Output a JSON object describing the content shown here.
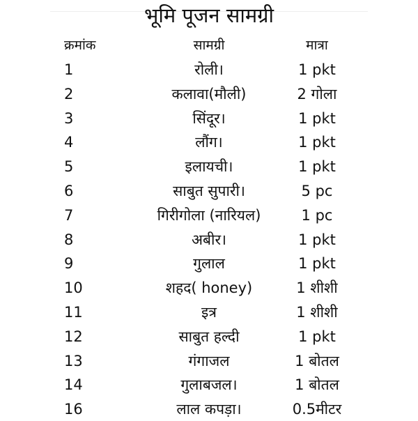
{
  "title": "भूमि पूजन सामग्री",
  "headers": {
    "serial": "क्रमांक",
    "item": "सामग्री",
    "quantity": "मात्रा"
  },
  "rows": [
    {
      "n": "1",
      "item": "रोली।",
      "qty": "1 pkt"
    },
    {
      "n": "2",
      "item": "कलावा(मौली)",
      "qty": "2 गोला"
    },
    {
      "n": "3",
      "item": "सिंदूर।",
      "qty": "1 pkt"
    },
    {
      "n": "4",
      "item": "लौंग।",
      "qty": "1 pkt"
    },
    {
      "n": "5",
      "item": "इलायची।",
      "qty": "1 pkt"
    },
    {
      "n": "6",
      "item": "साबुत सुपारी।",
      "qty": "5 pc"
    },
    {
      "n": "7",
      "item": "गिरीगोला (नारियल)",
      "qty": "1 pc"
    },
    {
      "n": "8",
      "item": "अबीर।",
      "qty": "1 pkt"
    },
    {
      "n": "9",
      "item": "गुलाल",
      "qty": "1 pkt"
    },
    {
      "n": "10",
      "item": "शहद( honey)",
      "qty": "1 शीशी"
    },
    {
      "n": "11",
      "item": "इत्र",
      "qty": "1 शीशी"
    },
    {
      "n": "12",
      "item": "साबुत हल्दी",
      "qty": "1 pkt"
    },
    {
      "n": "13",
      "item": "गंगाजल",
      "qty": "1 बोतल"
    },
    {
      "n": "14",
      "item": "गुलाबजल।",
      "qty": "1 बोतल"
    },
    {
      "n": "16",
      "item": "लाल कपड़ा।",
      "qty": "0.5मीटर"
    }
  ]
}
